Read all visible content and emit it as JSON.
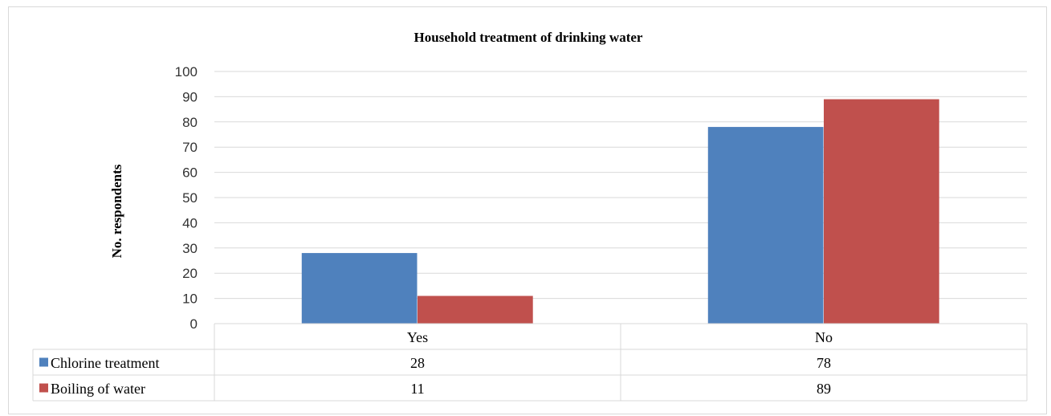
{
  "chart_data": {
    "type": "bar",
    "title": "Household treatment of drinking water",
    "ylabel": "No. respondents",
    "xlabel": "",
    "categories": [
      "Yes",
      "No"
    ],
    "series": [
      {
        "name": "Chlorine treatment",
        "values": [
          28,
          78
        ],
        "color": "#4f81bd"
      },
      {
        "name": "Boiling of water",
        "values": [
          11,
          89
        ],
        "color": "#c0504d"
      }
    ],
    "ylim": [
      0,
      100
    ],
    "yticks": [
      0,
      10,
      20,
      30,
      40,
      50,
      60,
      70,
      80,
      90,
      100
    ],
    "grid": true,
    "legend": "data-table"
  }
}
